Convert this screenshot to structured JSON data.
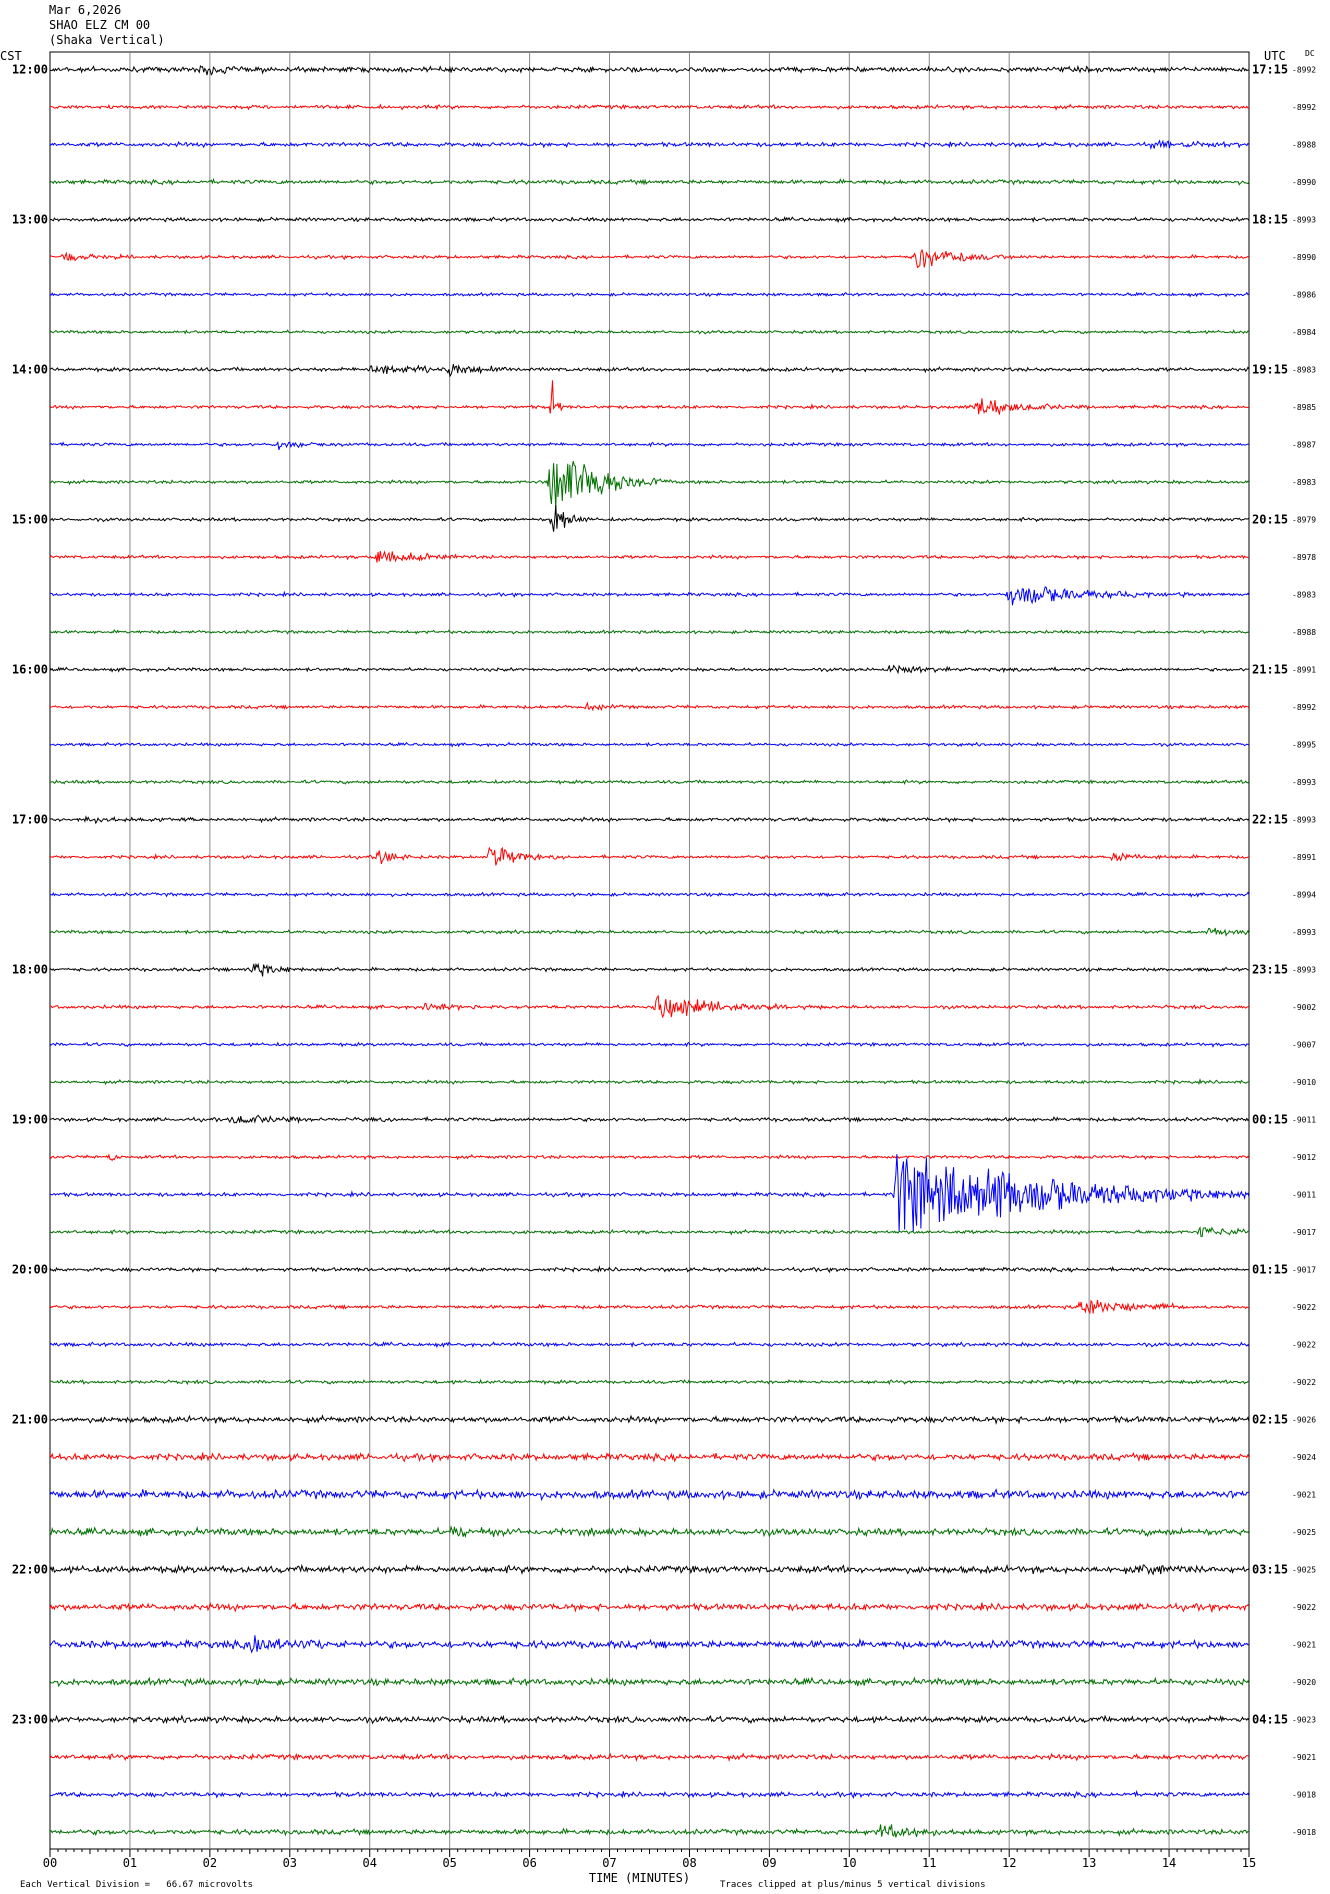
{
  "header": {
    "date": "Mar 6,2026",
    "station": "SHAO ELZ CM 00",
    "instrument": "(Shaka Vertical)"
  },
  "left_axis_label": "CST",
  "right_axis_label": "UTC",
  "dc_label": "DC",
  "footer": {
    "scale": "Each Vertical Division =   66.67 microvolts",
    "clip": "Traces clipped at plus/minus 5 vertical divisions",
    "xlabel": "TIME (MINUTES)"
  },
  "chart_data": {
    "type": "line",
    "title": "",
    "xlabel": "TIME (MINUTES)",
    "xlim": [
      0,
      15
    ],
    "x_ticks": [
      "00",
      "01",
      "02",
      "03",
      "04",
      "05",
      "06",
      "07",
      "08",
      "09",
      "10",
      "11",
      "12",
      "13",
      "14",
      "15"
    ],
    "trace_colors": [
      "#000000",
      "#ff0000",
      "#0000ff",
      "#007000"
    ],
    "rows_per_hour": 4,
    "minutes_per_row": 15,
    "left_hour_labels": [
      "12:00",
      "13:00",
      "14:00",
      "15:00",
      "16:00",
      "17:00",
      "18:00",
      "19:00",
      "20:00",
      "21:00",
      "22:00",
      "23:00"
    ],
    "right_hour_labels": [
      "17:15",
      "18:15",
      "19:15",
      "20:15",
      "21:15",
      "22:15",
      "23:15",
      "00:15",
      "01:15",
      "02:15",
      "03:15",
      "04:15"
    ],
    "dc_offsets": [
      "-8992",
      "-8992",
      "-8988",
      "-8990",
      "-8993",
      "-8990",
      "-8986",
      "-8984",
      "-8983",
      "-8985",
      "-8987",
      "-8983",
      "-8979",
      "-8978",
      "-8983",
      "-8988",
      "-8991",
      "-8992",
      "-8995",
      "-8993",
      "-8993",
      "-8991",
      "-8994",
      "-8993",
      "-8993",
      "-9002",
      "-9007",
      "-9010",
      "-9011",
      "-9012",
      "-9011",
      "-9017",
      "-9017",
      "-9022",
      "-9022",
      "-9022",
      "-9026",
      "-9024",
      "-9021",
      "-9025",
      "-9025",
      "-9022",
      "-9021",
      "-9020",
      "-9023",
      "-9021",
      "-9018",
      "-9018"
    ],
    "noise_levels": [
      2.2,
      1.6,
      1.8,
      1.8,
      1.6,
      1.4,
      1.3,
      1.3,
      1.6,
      1.4,
      1.4,
      1.4,
      1.4,
      1.4,
      1.4,
      1.3,
      1.4,
      1.4,
      1.3,
      1.4,
      1.6,
      1.4,
      1.4,
      1.4,
      1.4,
      1.5,
      1.4,
      1.4,
      1.6,
      1.4,
      1.6,
      1.5,
      1.6,
      1.5,
      1.6,
      1.5,
      2.6,
      2.8,
      3.6,
      3.0,
      3.0,
      2.8,
      3.2,
      2.8,
      2.6,
      2.2,
      2.0,
      2.2
    ],
    "events": [
      {
        "row": 0,
        "minute": 1.9,
        "amp": 8,
        "dur": 0.3
      },
      {
        "row": 2,
        "minute": 13.8,
        "amp": 4,
        "dur": 1.0
      },
      {
        "row": 5,
        "minute": 0.15,
        "amp": 6,
        "dur": 0.3
      },
      {
        "row": 5,
        "minute": 10.85,
        "amp": 14,
        "dur": 0.5
      },
      {
        "row": 8,
        "minute": 4.0,
        "amp": 6,
        "dur": 0.7
      },
      {
        "row": 8,
        "minute": 5.0,
        "amp": 7,
        "dur": 0.4
      },
      {
        "row": 9,
        "minute": 11.6,
        "amp": 12,
        "dur": 0.5
      },
      {
        "row": 10,
        "minute": 2.85,
        "amp": 6,
        "dur": 0.3
      },
      {
        "row": 11,
        "minute": 6.27,
        "amp": 50,
        "dur": 0.5
      },
      {
        "row": 12,
        "minute": 6.3,
        "amp": 30,
        "dur": 0.15
      },
      {
        "row": 9,
        "minute": 6.3,
        "amp": 40,
        "dur": 0.05
      },
      {
        "row": 13,
        "minute": 4.1,
        "amp": 12,
        "dur": 0.4
      },
      {
        "row": 14,
        "minute": 12.0,
        "amp": 14,
        "dur": 0.9
      },
      {
        "row": 16,
        "minute": 10.5,
        "amp": 5,
        "dur": 0.7
      },
      {
        "row": 17,
        "minute": 6.7,
        "amp": 5,
        "dur": 0.2
      },
      {
        "row": 20,
        "minute": 0.4,
        "amp": 4,
        "dur": 0.5
      },
      {
        "row": 21,
        "minute": 4.1,
        "amp": 10,
        "dur": 0.2
      },
      {
        "row": 21,
        "minute": 5.5,
        "amp": 18,
        "dur": 0.3
      },
      {
        "row": 21,
        "minute": 13.3,
        "amp": 7,
        "dur": 0.3
      },
      {
        "row": 23,
        "minute": 14.5,
        "amp": 4,
        "dur": 0.7
      },
      {
        "row": 24,
        "minute": 2.5,
        "amp": 9,
        "dur": 0.4
      },
      {
        "row": 25,
        "minute": 4.7,
        "amp": 5,
        "dur": 0.4
      },
      {
        "row": 25,
        "minute": 7.6,
        "amp": 16,
        "dur": 0.7
      },
      {
        "row": 28,
        "minute": 2.3,
        "amp": 5,
        "dur": 0.7
      },
      {
        "row": 29,
        "minute": 0.75,
        "amp": 5,
        "dur": 0.1
      },
      {
        "row": 30,
        "minute": 10.6,
        "amp": 60,
        "dur": 1.6
      },
      {
        "row": 31,
        "minute": 14.4,
        "amp": 8,
        "dur": 0.4
      },
      {
        "row": 33,
        "minute": 12.9,
        "amp": 10,
        "dur": 0.6
      },
      {
        "row": 33,
        "minute": 13.8,
        "amp": 5,
        "dur": 0.2
      },
      {
        "row": 39,
        "minute": 5.0,
        "amp": 5,
        "dur": 0.7
      },
      {
        "row": 40,
        "minute": 13.6,
        "amp": 7,
        "dur": 0.3
      },
      {
        "row": 42,
        "minute": 2.5,
        "amp": 9,
        "dur": 0.5
      },
      {
        "row": 47,
        "minute": 10.4,
        "amp": 10,
        "dur": 0.5
      }
    ]
  }
}
